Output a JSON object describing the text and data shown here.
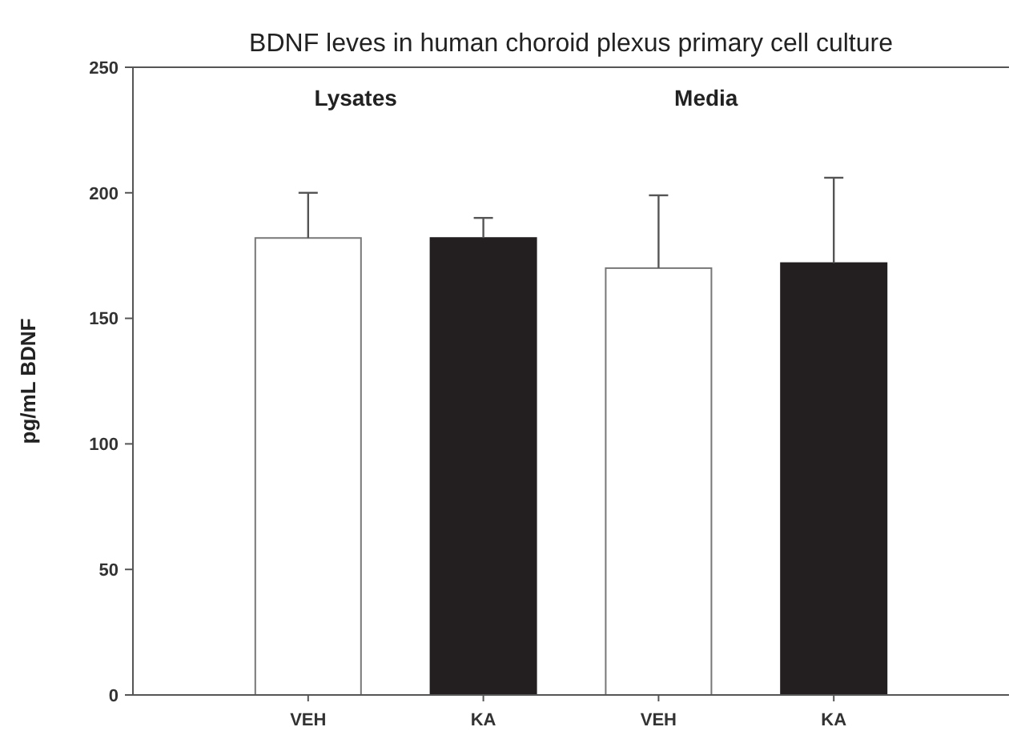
{
  "chart_data": {
    "type": "bar",
    "title": "BDNF leves in human choroid plexus primary cell culture",
    "ylabel": "pg/mL BDNF",
    "categories": [
      "VEH",
      "KA",
      "VEH",
      "KA"
    ],
    "values": [
      182,
      182,
      170,
      172
    ],
    "colors": [
      "#ffffff",
      "#231f20",
      "#ffffff",
      "#231f20"
    ],
    "errors": [
      [
        182,
        200
      ],
      [
        182,
        190
      ],
      [
        170,
        199
      ],
      [
        172,
        206
      ]
    ],
    "annotations": [
      "Lysates",
      "Media"
    ],
    "ylim": [
      0,
      250
    ],
    "yticks": [
      0,
      50,
      100,
      150,
      200,
      250
    ],
    "grid": false
  }
}
